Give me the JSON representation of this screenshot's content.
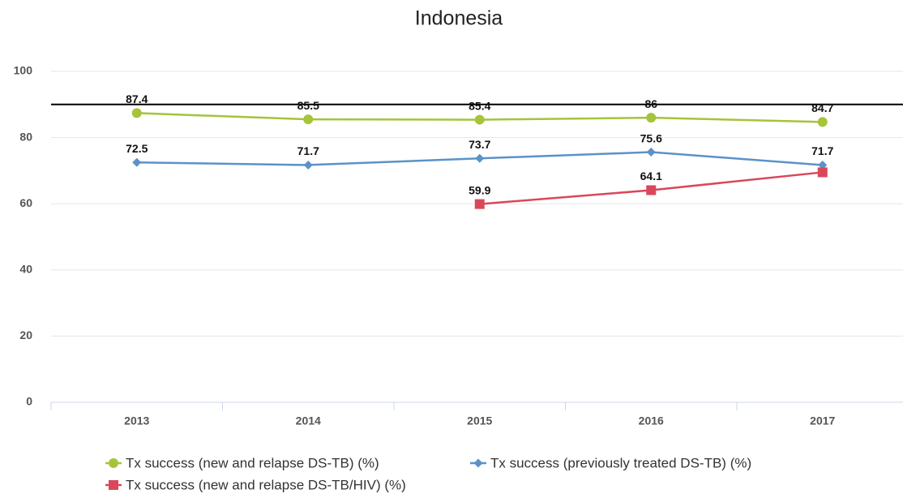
{
  "chart_data": {
    "type": "line",
    "title": "Indonesia",
    "categories": [
      "2013",
      "2014",
      "2015",
      "2016",
      "2017"
    ],
    "series": [
      {
        "name": "Tx success (new and relapse DS-TB) (%)",
        "color": "#a5c43a",
        "marker": "circle",
        "values": [
          87.4,
          85.5,
          85.4,
          86,
          84.7
        ]
      },
      {
        "name": "Tx success (previously treated DS-TB) (%)",
        "color": "#5b92c9",
        "marker": "diamond",
        "values": [
          72.5,
          71.7,
          73.7,
          75.6,
          71.7
        ]
      },
      {
        "name": "Tx success (new and relapse DS-TB/HIV) (%)",
        "color": "#d9485a",
        "marker": "square",
        "values": [
          null,
          null,
          59.9,
          64.1,
          69.5
        ],
        "value_labels": [
          null,
          null,
          "59.9",
          "64.1",
          null
        ]
      }
    ],
    "reference_line": 90,
    "ylim": [
      0,
      100
    ],
    "yticks": [
      0,
      20,
      40,
      60,
      80,
      100
    ],
    "grid": true
  }
}
